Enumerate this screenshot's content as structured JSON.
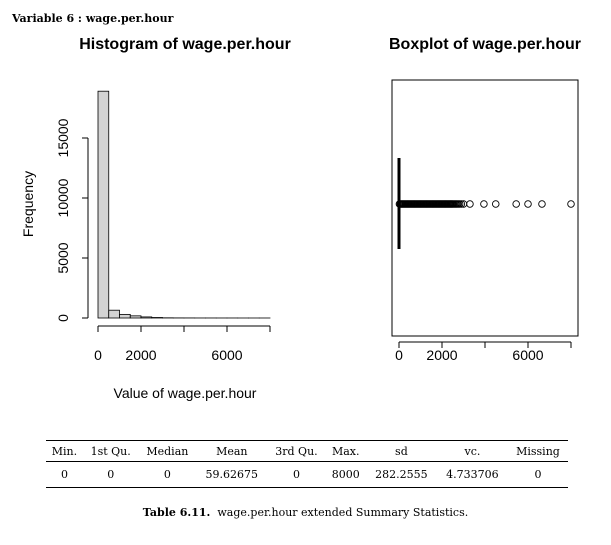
{
  "header": {
    "variable_label": "Variable 6 :  wage.per.hour"
  },
  "chart_data": [
    {
      "type": "bar",
      "title": "Histogram of wage.per.hour",
      "xlabel": "Value of wage.per.hour",
      "ylabel": "Frequency",
      "bin_width": 500,
      "bins": [
        {
          "start": 0,
          "end": 500,
          "count": 18900
        },
        {
          "start": 500,
          "end": 1000,
          "count": 650
        },
        {
          "start": 1000,
          "end": 1500,
          "count": 300
        },
        {
          "start": 1500,
          "end": 2000,
          "count": 180
        },
        {
          "start": 2000,
          "end": 2500,
          "count": 90
        },
        {
          "start": 2500,
          "end": 3000,
          "count": 40
        },
        {
          "start": 3000,
          "end": 3500,
          "count": 15
        },
        {
          "start": 3500,
          "end": 4000,
          "count": 8
        },
        {
          "start": 4000,
          "end": 4500,
          "count": 6
        },
        {
          "start": 4500,
          "end": 5000,
          "count": 3
        },
        {
          "start": 5000,
          "end": 5500,
          "count": 3
        },
        {
          "start": 5500,
          "end": 6000,
          "count": 2
        },
        {
          "start": 6000,
          "end": 6500,
          "count": 2
        },
        {
          "start": 6500,
          "end": 7000,
          "count": 1
        },
        {
          "start": 7000,
          "end": 7500,
          "count": 1
        },
        {
          "start": 7500,
          "end": 8000,
          "count": 1
        }
      ],
      "xlim": [
        0,
        8000
      ],
      "ylim": [
        0,
        19000
      ],
      "x_ticks": [
        0,
        2000,
        4000,
        6000,
        8000
      ],
      "x_tick_labels": [
        "0",
        "2000",
        "",
        "6000",
        ""
      ],
      "y_ticks": [
        0,
        5000,
        10000,
        15000
      ],
      "y_tick_labels": [
        "0",
        "5000",
        "10000",
        "15000"
      ],
      "bar_color": "#d3d3d3",
      "grid": false
    },
    {
      "type": "scatter",
      "subtype": "boxplot",
      "title": "Boxplot of wage.per.hour",
      "orientation": "horizontal",
      "xlim": [
        0,
        8000
      ],
      "x_ticks": [
        0,
        2000,
        4000,
        6000,
        8000
      ],
      "x_tick_labels": [
        "0",
        "2000",
        "",
        "6000",
        ""
      ],
      "min": 0,
      "q1": 0,
      "median": 0,
      "q3": 0,
      "whisker_high": 0,
      "outliers": [
        20,
        60,
        100,
        140,
        180,
        220,
        260,
        300,
        340,
        380,
        420,
        460,
        500,
        540,
        580,
        620,
        660,
        700,
        740,
        780,
        820,
        860,
        900,
        940,
        980,
        1020,
        1060,
        1100,
        1140,
        1180,
        1220,
        1260,
        1300,
        1340,
        1380,
        1420,
        1460,
        1500,
        1540,
        1580,
        1620,
        1660,
        1700,
        1740,
        1780,
        1820,
        1860,
        1900,
        1940,
        1980,
        2020,
        2060,
        2100,
        2140,
        2180,
        2220,
        2260,
        2300,
        2340,
        2380,
        2420,
        2460,
        2500,
        2550,
        2600,
        2650,
        2700,
        2760,
        2820,
        2900,
        3000,
        3300,
        3950,
        4500,
        5450,
        6000,
        6650,
        8000
      ],
      "grid": false
    }
  ],
  "summary_table": {
    "headers": [
      "Min.",
      "1st Qu.",
      "Median",
      "Mean",
      "3rd Qu.",
      "Max.",
      "sd",
      "vc.",
      "Missing"
    ],
    "values": [
      "0",
      "0",
      "0",
      "59.62675",
      "0",
      "8000",
      "282.2555",
      "4.733706",
      "0"
    ]
  },
  "caption": {
    "label": "Table 6.11.",
    "text": "wage.per.hour extended Summary Statistics."
  }
}
